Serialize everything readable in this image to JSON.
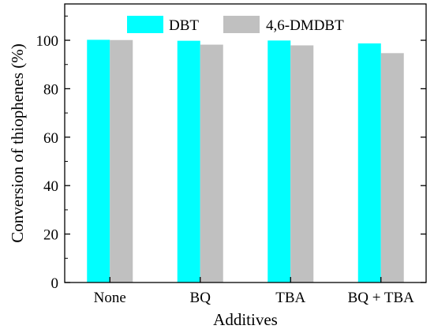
{
  "chart_data": {
    "type": "bar",
    "categories": [
      "None",
      "BQ",
      "TBA",
      "BQ + TBA"
    ],
    "series": [
      {
        "name": "DBT",
        "values": [
          100.2,
          99.8,
          99.9,
          98.7
        ],
        "color": "#00FFFF"
      },
      {
        "name": "4,6-DMDBT",
        "values": [
          100.1,
          98.2,
          97.9,
          94.7
        ],
        "color": "#C0C0C0"
      }
    ],
    "xlabel": "Additives",
    "ylabel": "Conversion of thiophenes (%)",
    "ylim": [
      0,
      115
    ],
    "yticks": [
      0,
      20,
      40,
      60,
      80,
      100
    ],
    "legend": "top-center",
    "grid": false
  }
}
